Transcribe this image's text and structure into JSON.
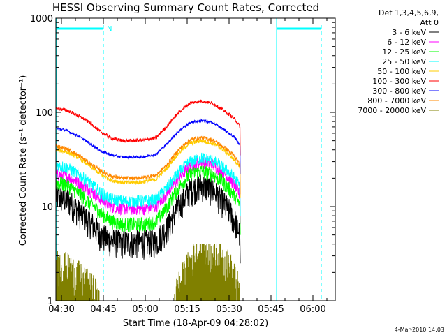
{
  "chart_data": {
    "type": "line",
    "title": "HESSI Observing Summary Count Rates, Corrected",
    "xlabel": "Start Time (18-Apr-09 04:28:02)",
    "ylabel": "Corrected Count Rate (s⁻¹ detector⁻¹)",
    "x_start": "04:28",
    "x_end": "06:08",
    "x_ticks": [
      "04:30",
      "04:45",
      "05:00",
      "05:15",
      "05:30",
      "05:45",
      "06:00"
    ],
    "y_scale": "log",
    "ylim": [
      1,
      1000
    ],
    "y_ticks": [
      "1",
      "10",
      "100",
      "1000"
    ],
    "legend_header": [
      "Det 1,3,4,5,6,9,",
      "Att 0"
    ],
    "legend_position": "right",
    "timestamp": "4-Mar-2010 14:03",
    "flag_label": "N",
    "flag_bars": [
      [
        "04:28",
        "04:45"
      ],
      [
        "05:47",
        "06:03"
      ]
    ],
    "data_gaps": [
      [
        "04:28",
        "04:28"
      ],
      [
        "05:47",
        "05:47"
      ]
    ],
    "dashed_markers": [
      "04:45",
      "05:47",
      "06:03"
    ],
    "series": [
      {
        "name": "3 - 6 keV",
        "color": "#000000",
        "noise": 0.35,
        "x": [
          "04:28",
          "04:32",
          "04:36",
          "04:40",
          "04:44",
          "04:48",
          "04:52",
          "04:56",
          "05:00",
          "05:04",
          "05:08",
          "05:12",
          "05:16",
          "05:20",
          "05:24",
          "05:28",
          "05:32",
          "05:34"
        ],
        "values": [
          13,
          12,
          9,
          7,
          5,
          4.3,
          4.2,
          4.2,
          4.2,
          4.3,
          6,
          10,
          15,
          17,
          15,
          11,
          7,
          5
        ]
      },
      {
        "name": "6 - 12 keV",
        "color": "#ff00ff",
        "noise": 0.15,
        "x": [
          "04:28",
          "04:32",
          "04:36",
          "04:40",
          "04:44",
          "04:48",
          "04:52",
          "04:56",
          "05:00",
          "05:04",
          "05:08",
          "05:12",
          "05:16",
          "05:20",
          "05:24",
          "05:28",
          "05:32",
          "05:34"
        ],
        "values": [
          22,
          21,
          18,
          15,
          12,
          10,
          9.5,
          9.5,
          9.5,
          10,
          14,
          20,
          27,
          30,
          28,
          23,
          17,
          13
        ]
      },
      {
        "name": "12 - 25 keV",
        "color": "#00ff00",
        "noise": 0.18,
        "x": [
          "04:28",
          "04:32",
          "04:36",
          "04:40",
          "04:44",
          "04:48",
          "04:52",
          "04:56",
          "05:00",
          "05:04",
          "05:08",
          "05:12",
          "05:16",
          "05:20",
          "05:24",
          "05:28",
          "05:32",
          "05:34"
        ],
        "values": [
          18,
          17,
          14,
          11,
          8.5,
          7,
          6.5,
          6.5,
          6.5,
          7,
          10,
          16,
          22,
          24,
          22,
          18,
          13,
          10
        ]
      },
      {
        "name": "25 - 50 keV",
        "color": "#00ffff",
        "noise": 0.15,
        "x": [
          "04:28",
          "04:32",
          "04:36",
          "04:40",
          "04:44",
          "04:48",
          "04:52",
          "04:56",
          "05:00",
          "05:04",
          "05:08",
          "05:12",
          "05:16",
          "05:20",
          "05:24",
          "05:28",
          "05:32",
          "05:34"
        ],
        "values": [
          28,
          26,
          22,
          18,
          14,
          12,
          11.5,
          11.5,
          11.5,
          12,
          16,
          23,
          30,
          33,
          31,
          26,
          20,
          16
        ]
      },
      {
        "name": "50 - 100 keV",
        "color": "#ffcc00",
        "noise": 0.05,
        "x": [
          "04:28",
          "04:32",
          "04:36",
          "04:40",
          "04:44",
          "04:48",
          "04:52",
          "04:56",
          "05:00",
          "05:04",
          "05:08",
          "05:12",
          "05:16",
          "05:20",
          "05:24",
          "05:28",
          "05:32",
          "05:34"
        ],
        "values": [
          40,
          38,
          33,
          27,
          22,
          19,
          18,
          18,
          18.5,
          19.5,
          26,
          37,
          47,
          50,
          47,
          40,
          31,
          25
        ]
      },
      {
        "name": "100 - 300 keV",
        "color": "#ff0000",
        "noise": 0.04,
        "x": [
          "04:28",
          "04:32",
          "04:36",
          "04:40",
          "04:44",
          "04:48",
          "04:52",
          "04:56",
          "05:00",
          "05:04",
          "05:08",
          "05:12",
          "05:16",
          "05:20",
          "05:24",
          "05:28",
          "05:32",
          "05:34"
        ],
        "values": [
          110,
          105,
          92,
          78,
          62,
          53,
          50,
          50,
          51,
          54,
          72,
          100,
          125,
          132,
          125,
          105,
          85,
          70
        ]
      },
      {
        "name": "300 - 800 keV",
        "color": "#0000ff",
        "noise": 0.03,
        "x": [
          "04:28",
          "04:32",
          "04:36",
          "04:40",
          "04:44",
          "04:48",
          "04:52",
          "04:56",
          "05:00",
          "05:04",
          "05:08",
          "05:12",
          "05:16",
          "05:20",
          "05:24",
          "05:28",
          "05:32",
          "05:34"
        ],
        "values": [
          68,
          64,
          56,
          47,
          39,
          35,
          33.5,
          33.5,
          34,
          36,
          47,
          63,
          78,
          82,
          78,
          66,
          54,
          44
        ]
      },
      {
        "name": "800 - 7000 keV",
        "color": "#ff8800",
        "noise": 0.05,
        "x": [
          "04:28",
          "04:32",
          "04:36",
          "04:40",
          "04:44",
          "04:48",
          "04:52",
          "04:56",
          "05:00",
          "05:04",
          "05:08",
          "05:12",
          "05:16",
          "05:20",
          "05:24",
          "05:28",
          "05:32",
          "05:34"
        ],
        "values": [
          44,
          41,
          35,
          29,
          24,
          21,
          20,
          20,
          20.5,
          21.5,
          28,
          40,
          51,
          54,
          51,
          43,
          34,
          27
        ]
      },
      {
        "name": "7000 - 20000 keV",
        "color": "#808000",
        "noise": 0,
        "x": [
          "04:28",
          "04:31",
          "04:34",
          "04:37",
          "04:40",
          "04:42",
          "04:44",
          "05:10",
          "05:14",
          "05:18",
          "05:22",
          "05:26",
          "05:30",
          "05:32",
          "05:34"
        ],
        "values": [
          2.6,
          2.4,
          2.2,
          1.8,
          1.5,
          1.3,
          1.0,
          1.0,
          2.0,
          3.2,
          3.5,
          3.2,
          2.5,
          1.8,
          1.2
        ]
      }
    ]
  }
}
